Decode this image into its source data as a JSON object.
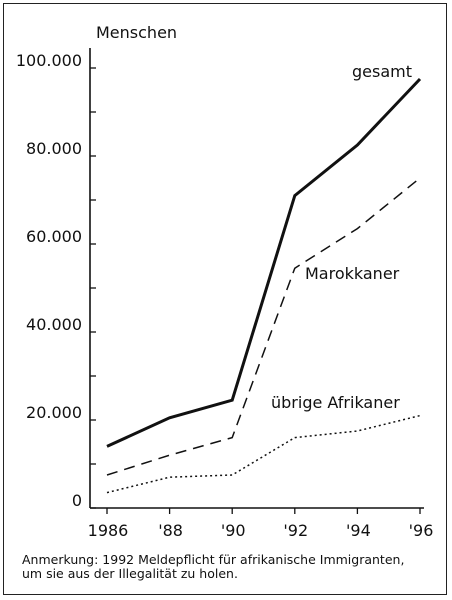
{
  "chart_data": {
    "type": "line",
    "ylabel": "Menschen",
    "x": [
      1986,
      1988,
      1990,
      1992,
      1994,
      1996
    ],
    "x_tick_labels": [
      "1986",
      "'88",
      "'90",
      "'92",
      "'94",
      "'96"
    ],
    "y_tick_values": [
      0,
      20000,
      40000,
      60000,
      80000,
      100000
    ],
    "y_tick_labels": [
      "0",
      "20.000",
      "40.000",
      "60.000",
      "80.000",
      "100.000"
    ],
    "ylim": [
      0,
      100000
    ],
    "xlim": [
      1986,
      1996
    ],
    "grid": false,
    "series": [
      {
        "name": "gesamt",
        "style": "solid",
        "values": [
          14000,
          20500,
          24500,
          71000,
          82500,
          97500
        ]
      },
      {
        "name": "Marokkaner",
        "style": "dashed",
        "values": [
          7500,
          12000,
          16000,
          54500,
          63500,
          75000
        ]
      },
      {
        "name": "übrige Afrikaner",
        "style": "dotted",
        "values": [
          3500,
          7000,
          7500,
          16000,
          17500,
          21000
        ]
      }
    ]
  },
  "note": {
    "line1": "Anmerkung: 1992 Meldepflicht für afrikanische Immigranten,",
    "line2": "um sie aus der Illegalität zu holen."
  }
}
